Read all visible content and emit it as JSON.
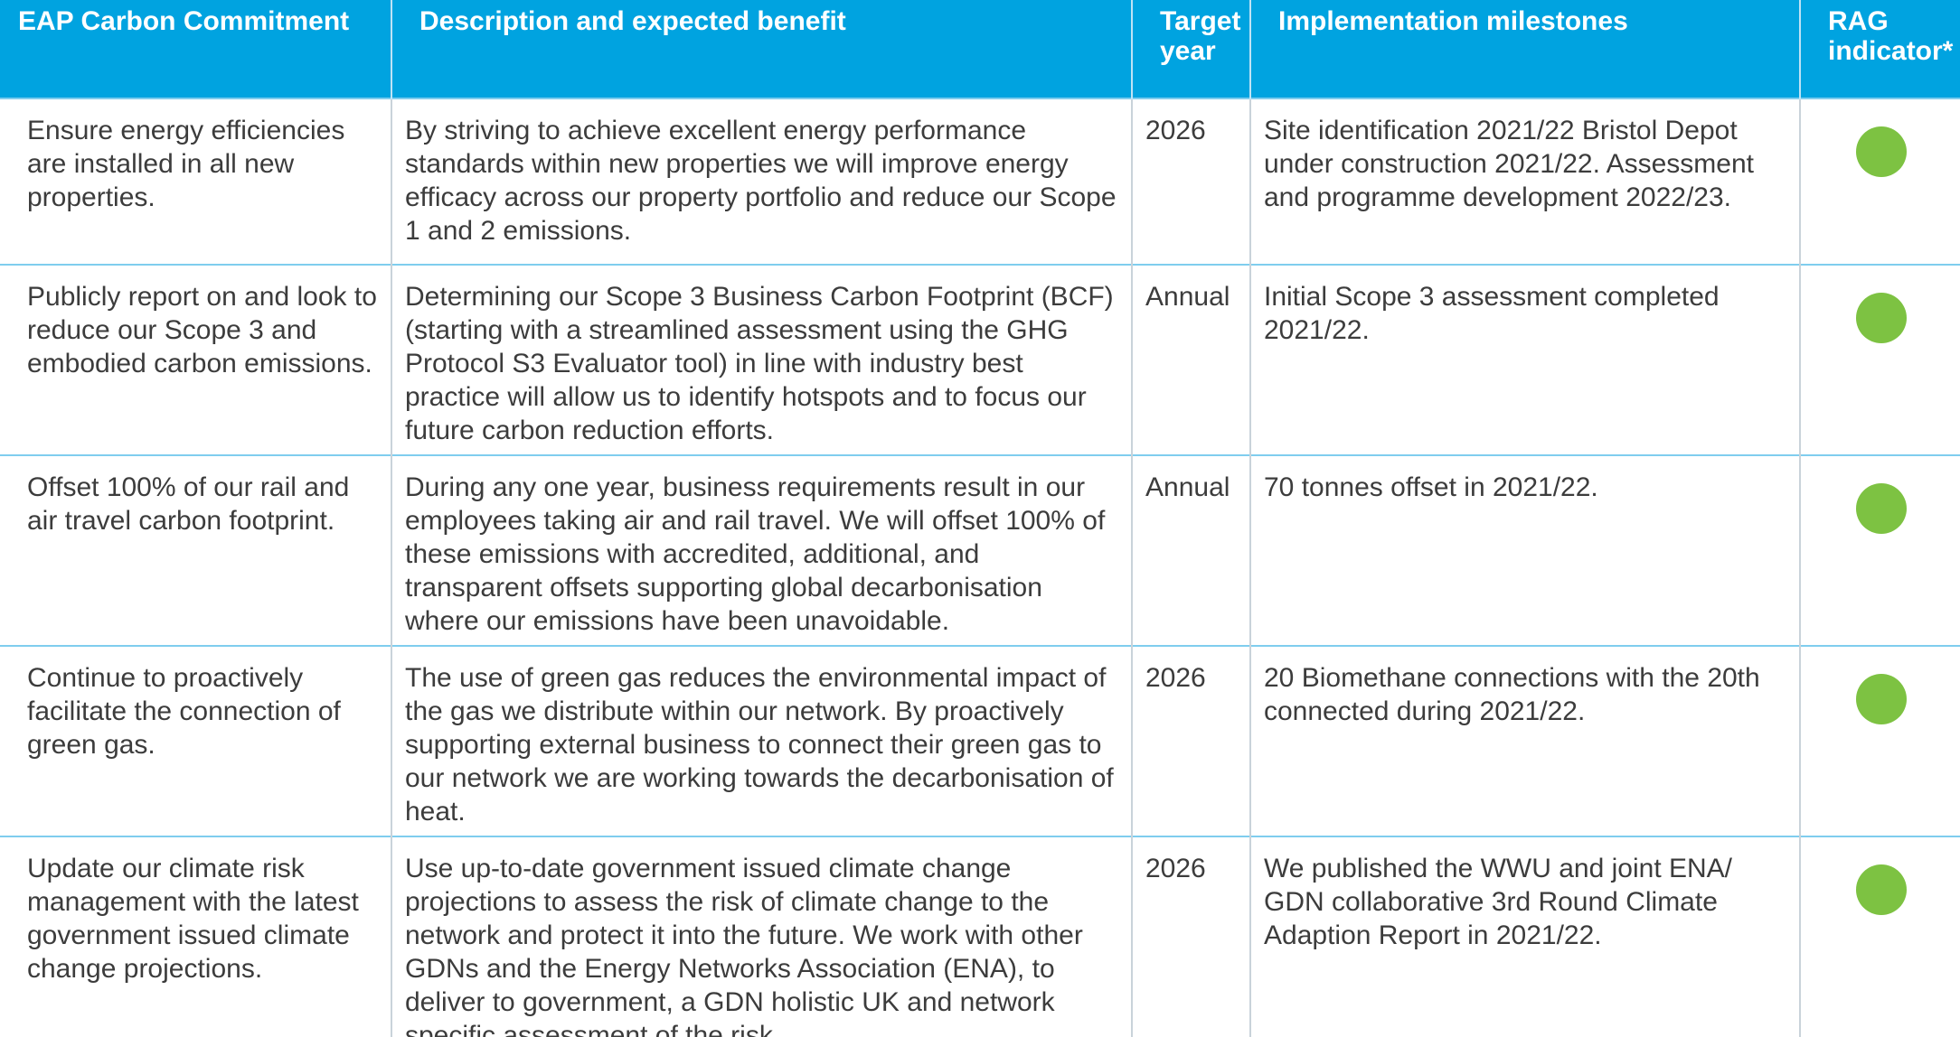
{
  "table": {
    "header": [
      "EAP Carbon Commitment",
      "Description and expected benefit",
      "Target year",
      "Implementation milestones",
      "RAG indicator*"
    ],
    "rows": [
      {
        "cells": [
          "Ensure energy efficiencies are installed in all new properties.",
          "By striving to achieve excellent energy performance standards within new properties we will improve energy efficacy across our property portfolio and reduce our Scope 1 and 2 emissions.",
          "2026",
          "Site identification 2021/22 Bristol Depot under construction 2021/22. Assessment and programme development 2022/23."
        ],
        "rag_color": "#7dc242"
      },
      {
        "cells": [
          "Publicly report on and look to reduce our Scope 3 and embodied carbon emissions.",
          "Determining our Scope 3 Business Carbon Footprint (BCF) (starting with a streamlined assessment using the GHG Protocol S3 Evaluator tool) in line with industry best practice will allow us to identify hotspots and to focus our future carbon reduction efforts.",
          "Annual",
          "Initial Scope 3 assessment completed 2021/22."
        ],
        "rag_color": "#7dc242"
      },
      {
        "cells": [
          "Offset 100% of our rail and air travel carbon footprint.",
          "During any one year, business requirements result in our employees taking air and rail travel. We will offset 100% of these emissions with accredited, additional, and transparent offsets supporting global decarbonisation where our emissions have been unavoidable.",
          "Annual",
          "70 tonnes offset in 2021/22."
        ],
        "rag_color": "#7dc242"
      },
      {
        "cells": [
          "Continue to proactively facilitate the connection of green gas.",
          "The use of green gas reduces the environmental impact of the gas we distribute within our network. By proactively supporting external business to connect their green gas to our network we are working towards the decarbonisation of heat.",
          "2026",
          "20 Biomethane connections with the 20th connected during 2021/22."
        ],
        "rag_color": "#7dc242"
      },
      {
        "cells": [
          "Update our climate risk management with the latest government issued climate change projections.",
          "Use up-to-date government issued climate change projections to assess the risk of climate change to the network and protect it into the future. We work with other GDNs and the Energy Networks Association (ENA), to deliver to government, a GDN holistic UK and network specific assessment of the risk.",
          "2026",
          "We published the WWU and joint ENA/ GDN collaborative 3rd Round Climate Adaption Report in 2021/22."
        ],
        "rag_color": "#7dc242"
      }
    ]
  }
}
